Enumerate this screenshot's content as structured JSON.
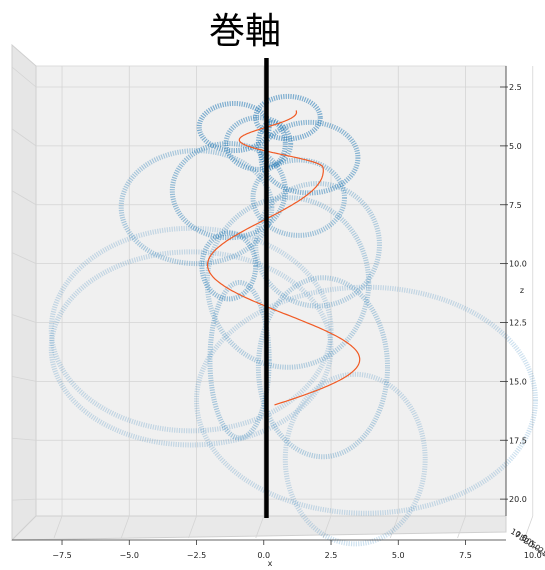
{
  "chart_data": {
    "type": "line",
    "title": "巻軸",
    "xlabel": "x",
    "zlabel": "z",
    "xlim": [
      -8.3,
      10.0
    ],
    "zlim": [
      2.2,
      20.6
    ],
    "z_inverted": true,
    "x_ticks": [
      "−7.5",
      "−5.0",
      "−2.5",
      "0.0",
      "2.5",
      "5.0",
      "7.5",
      "10.0"
    ],
    "z_ticks": [
      "2.5",
      "5.0",
      "7.5",
      "10.0",
      "12.5",
      "15.0",
      "17.5",
      "20.0"
    ],
    "y_ticks_compressed": [
      "10.0",
      "7.5",
      "5.0",
      "2.5",
      "0.0",
      "−2.5",
      "−5.0",
      "−7.5"
    ],
    "grid": true,
    "colors": {
      "loops": "#1f77b4",
      "helix": "#f15a24",
      "axis_line": "#000000",
      "pane": "#f0f0f0",
      "grid": "#d4d4d4"
    },
    "axis_line": {
      "x": 0.1,
      "z_start": 2.3,
      "z_end": 20.7
    },
    "helix": {
      "z_start": 3.5,
      "z_end": 16.0,
      "phase_start": 0.0,
      "segments": [
        {
          "z_end": 5.9,
          "turns": 1.0,
          "amp_start": 0.8,
          "amp_end": 1.8
        },
        {
          "z_end": 16.0,
          "turns": 1.25,
          "amp_start": 1.8,
          "amp_end": 3.5
        }
      ],
      "center_x": 0.4
    },
    "loops": [
      {
        "cx": -1.1,
        "cz": 4.2,
        "rx": 1.3,
        "rz": 1.0,
        "alpha": 0.55
      },
      {
        "cx": 0.9,
        "cz": 3.8,
        "rx": 1.2,
        "rz": 0.9,
        "alpha": 0.55
      },
      {
        "cx": -0.2,
        "cz": 4.9,
        "rx": 1.2,
        "rz": 1.1,
        "alpha": 0.5
      },
      {
        "cx": 1.7,
        "cz": 5.5,
        "rx": 1.8,
        "rz": 1.5,
        "alpha": 0.5
      },
      {
        "cx": -1.3,
        "cz": 6.9,
        "rx": 2.1,
        "rz": 2.0,
        "alpha": 0.45
      },
      {
        "cx": -2.5,
        "cz": 7.6,
        "rx": 2.8,
        "rz": 2.4,
        "alpha": 0.35
      },
      {
        "cx": 1.3,
        "cz": 7.2,
        "rx": 1.7,
        "rz": 1.6,
        "alpha": 0.4
      },
      {
        "cx": 2.0,
        "cz": 9.2,
        "rx": 2.3,
        "rz": 2.6,
        "alpha": 0.3
      },
      {
        "cx": -1.3,
        "cz": 10.1,
        "rx": 1.0,
        "rz": 1.4,
        "alpha": 0.45
      },
      {
        "cx": 0.9,
        "cz": 10.8,
        "rx": 3.0,
        "rz": 3.6,
        "alpha": 0.3
      },
      {
        "cx": 2.2,
        "cz": 14.4,
        "rx": 2.4,
        "rz": 3.8,
        "alpha": 0.3
      },
      {
        "cx": -0.9,
        "cz": 14.1,
        "rx": 1.1,
        "rz": 3.3,
        "alpha": 0.35
      },
      {
        "cx": -2.7,
        "cz": 12.8,
        "rx": 5.2,
        "rz": 4.3,
        "alpha": 0.22
      },
      {
        "cx": -2.7,
        "cz": 13.6,
        "rx": 5.2,
        "rz": 4.1,
        "alpha": 0.22
      },
      {
        "cx": 3.8,
        "cz": 15.8,
        "rx": 6.3,
        "rz": 4.8,
        "alpha": 0.22
      },
      {
        "cx": 3.4,
        "cz": 18.3,
        "rx": 2.6,
        "rz": 3.6,
        "alpha": 0.22
      },
      {
        "cx": 0.3,
        "cz": 4.9,
        "rx": 0.5,
        "rz": 0.9,
        "alpha": 0.55
      }
    ]
  }
}
